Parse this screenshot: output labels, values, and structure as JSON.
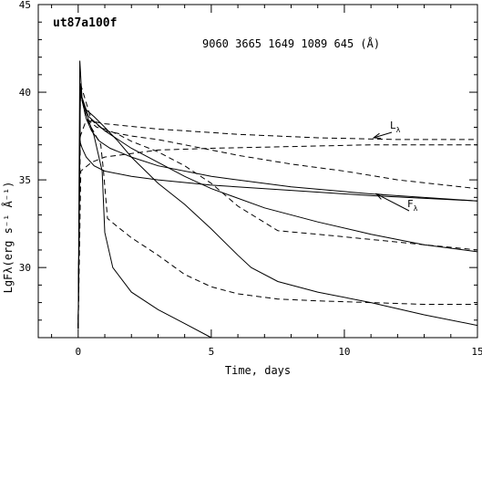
{
  "chart_data": {
    "type": "line",
    "title": "ut87a100f",
    "subtitle": "9060 3665 1649 1089 645 (Å)",
    "xlabel": "Time, days",
    "ylabel": "LgFλ(erg s⁻¹ Å⁻¹)",
    "xlim": [
      -1.5,
      15
    ],
    "ylim": [
      26,
      45
    ],
    "xticks": [
      0,
      5,
      10,
      15
    ],
    "xtick_labels": [
      "0",
      "5",
      "10",
      "15"
    ],
    "yticks": [
      30,
      35,
      40,
      45
    ],
    "ytick_labels": [
      "30",
      "35",
      "40",
      "45"
    ],
    "grid": false,
    "legend": "none",
    "annotations": [
      {
        "text": "L",
        "sub": "λ",
        "point_to": [
          11.1,
          37.4
        ]
      },
      {
        "text": "F",
        "sub": "λ",
        "point_to": [
          11.2,
          34.2
        ]
      }
    ],
    "series": [
      {
        "style": "solid",
        "x": [
          0.0,
          0.06,
          0.15,
          0.3,
          0.5,
          0.8,
          1.2,
          2,
          3,
          5,
          8,
          11,
          15
        ],
        "y": [
          26.5,
          41.8,
          39.5,
          38.5,
          37.8,
          37.2,
          36.8,
          36.3,
          35.8,
          35.2,
          34.6,
          34.2,
          33.8
        ]
      },
      {
        "style": "solid",
        "x": [
          0.0,
          0.06,
          0.15,
          0.3,
          0.6,
          1,
          2,
          3,
          5,
          8,
          11,
          15
        ],
        "y": [
          26.5,
          37.2,
          36.8,
          36.3,
          35.8,
          35.5,
          35.2,
          35.0,
          34.7,
          34.4,
          34.1,
          33.8
        ]
      },
      {
        "style": "solid",
        "x": [
          0.0,
          0.08,
          0.15,
          0.4,
          1,
          2,
          3,
          4,
          5,
          7,
          9,
          11,
          13,
          15
        ],
        "y": [
          26.5,
          40.5,
          39.5,
          38.6,
          37.8,
          36.8,
          36.0,
          35.2,
          34.5,
          33.4,
          32.6,
          31.9,
          31.3,
          30.9
        ]
      },
      {
        "style": "solid",
        "x": [
          0.0,
          0.08,
          0.3,
          0.6,
          1,
          1.5,
          2,
          3,
          4,
          5,
          6,
          6.5,
          7.5,
          9,
          11,
          13,
          15
        ],
        "y": [
          26.5,
          40.0,
          39.0,
          38.6,
          38.0,
          37.2,
          36.3,
          34.8,
          33.6,
          32.2,
          30.7,
          30.0,
          29.2,
          28.6,
          28.0,
          27.3,
          26.7
        ]
      },
      {
        "style": "solid",
        "x": [
          0.0,
          0.08,
          0.3,
          0.6,
          0.9,
          1.0,
          1.3,
          2,
          3,
          4,
          5
        ],
        "y": [
          26.5,
          40.0,
          38.8,
          37.5,
          35.5,
          32.0,
          30.0,
          28.6,
          27.6,
          26.8,
          26.0
        ]
      },
      {
        "style": "dashed",
        "x": [
          0.0,
          0.08,
          0.3,
          1,
          3,
          6,
          9,
          12,
          15
        ],
        "y": [
          26.5,
          37.5,
          38.4,
          38.2,
          37.9,
          37.6,
          37.4,
          37.3,
          37.3
        ]
      },
      {
        "style": "dashed",
        "x": [
          0.0,
          0.1,
          0.5,
          1,
          2,
          3,
          5,
          8,
          11,
          15
        ],
        "y": [
          26.5,
          35.5,
          36.0,
          36.3,
          36.5,
          36.7,
          36.8,
          36.9,
          37.0,
          37.0
        ]
      },
      {
        "style": "dashed",
        "x": [
          0.0,
          0.08,
          0.5,
          1,
          2,
          3,
          4,
          5,
          6,
          8,
          10,
          12,
          15
        ],
        "y": [
          26.5,
          40.5,
          38.4,
          37.8,
          37.5,
          37.3,
          37.0,
          36.7,
          36.4,
          35.9,
          35.5,
          35.0,
          34.5
        ]
      },
      {
        "style": "dashed",
        "x": [
          0.0,
          0.08,
          0.3,
          0.7,
          1,
          1.5,
          2,
          3,
          4,
          5,
          6,
          7.5,
          9,
          11,
          13,
          15
        ],
        "y": [
          26.5,
          40.0,
          38.5,
          38.0,
          37.9,
          37.6,
          37.2,
          36.6,
          35.8,
          34.8,
          33.5,
          32.1,
          31.9,
          31.6,
          31.3,
          31.0
        ]
      },
      {
        "style": "dashed",
        "x": [
          0.0,
          0.08,
          0.3,
          0.6,
          0.85,
          0.95,
          1.1,
          1.5,
          2,
          3,
          4,
          5,
          6,
          7.5,
          9,
          11,
          13,
          15
        ],
        "y": [
          26.5,
          40.0,
          38.5,
          37.7,
          37.0,
          35.5,
          32.8,
          32.3,
          31.7,
          30.7,
          29.6,
          28.9,
          28.5,
          28.2,
          28.1,
          28.0,
          27.9,
          27.9
        ]
      }
    ]
  }
}
